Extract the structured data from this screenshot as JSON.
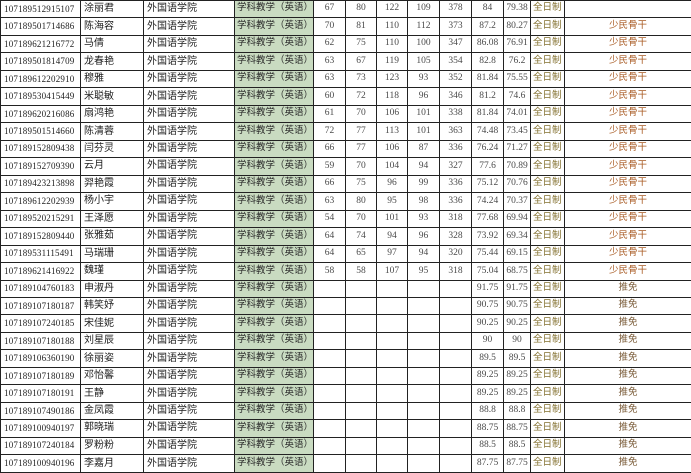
{
  "labels": {
    "college": "外国语学院",
    "major": "学科教学（英语）",
    "study_mode_fulltime": "全日制",
    "remark_shaomin": "少民骨干",
    "remark_tuimian": "推免"
  },
  "colors": {
    "major_cell_bg": "#c9dbc1",
    "table_border": "#222222",
    "fulltime_text": "#83702f",
    "remark_shaomin_text": "#a85a22",
    "remark_tuimian_text": "#7a5b38",
    "score_text": "#4a4a4a",
    "base_text": "#1d1d1d"
  },
  "table": {
    "col_names": [
      "candidate-id-cell",
      "candidate-name-cell",
      "college-cell",
      "major-cell",
      "score-politics-cell",
      "score-foreign-language-cell",
      "score-subject1-cell",
      "score-subject2-cell",
      "initial-total-score-cell",
      "retest-score-cell",
      "final-score-cell",
      "study-mode-cell",
      "remark-cell"
    ],
    "rows": [
      [
        "107189512915107",
        "涂丽君",
        "外国语学院",
        "学科教学（英语）",
        "67",
        "80",
        "122",
        "109",
        "378",
        "84",
        "79.38",
        "全日制",
        ""
      ],
      [
        "107189501714686",
        "陈海容",
        "外国语学院",
        "学科教学（英语）",
        "70",
        "81",
        "110",
        "112",
        "373",
        "87.2",
        "80.27",
        "全日制",
        "少民骨干"
      ],
      [
        "107189621216772",
        "马倩",
        "外国语学院",
        "学科教学（英语）",
        "62",
        "75",
        "110",
        "100",
        "347",
        "86.08",
        "76.91",
        "全日制",
        "少民骨干"
      ],
      [
        "107189501814709",
        "龙春艳",
        "外国语学院",
        "学科教学（英语）",
        "63",
        "67",
        "119",
        "105",
        "354",
        "82.8",
        "76.2",
        "全日制",
        "少民骨干"
      ],
      [
        "107189612202910",
        "穆雅",
        "外国语学院",
        "学科教学（英语）",
        "63",
        "73",
        "123",
        "93",
        "352",
        "81.84",
        "75.55",
        "全日制",
        "少民骨干"
      ],
      [
        "107189530415449",
        "米聪敏",
        "外国语学院",
        "学科教学（英语）",
        "60",
        "72",
        "118",
        "96",
        "346",
        "81.2",
        "74.6",
        "全日制",
        "少民骨干"
      ],
      [
        "107189620216086",
        "扇鸿艳",
        "外国语学院",
        "学科教学（英语）",
        "61",
        "70",
        "106",
        "101",
        "338",
        "81.84",
        "74.01",
        "全日制",
        "少民骨干"
      ],
      [
        "107189501514660",
        "陈清蓉",
        "外国语学院",
        "学科教学（英语）",
        "72",
        "77",
        "113",
        "101",
        "363",
        "74.48",
        "73.45",
        "全日制",
        "少民骨干"
      ],
      [
        "107189152809438",
        "闫芬灵",
        "外国语学院",
        "学科教学（英语）",
        "66",
        "77",
        "106",
        "87",
        "336",
        "76.24",
        "71.27",
        "全日制",
        "少民骨干"
      ],
      [
        "107189152709390",
        "云月",
        "外国语学院",
        "学科教学（英语）",
        "59",
        "70",
        "104",
        "94",
        "327",
        "77.6",
        "70.89",
        "全日制",
        "少民骨干"
      ],
      [
        "107189423213898",
        "羿艳霞",
        "外国语学院",
        "学科教学（英语）",
        "66",
        "75",
        "96",
        "99",
        "336",
        "75.12",
        "70.76",
        "全日制",
        "少民骨干"
      ],
      [
        "107189612202939",
        "杨小宇",
        "外国语学院",
        "学科教学（英语）",
        "63",
        "80",
        "95",
        "98",
        "336",
        "74.24",
        "70.37",
        "全日制",
        "少民骨干"
      ],
      [
        "107189520215291",
        "王泽愿",
        "外国语学院",
        "学科教学（英语）",
        "54",
        "70",
        "101",
        "93",
        "318",
        "77.68",
        "69.94",
        "全日制",
        "少民骨干"
      ],
      [
        "107189152809440",
        "张雅茹",
        "外国语学院",
        "学科教学（英语）",
        "64",
        "74",
        "94",
        "96",
        "328",
        "73.92",
        "69.34",
        "全日制",
        "少民骨干"
      ],
      [
        "107189531115491",
        "马瑞珊",
        "外国语学院",
        "学科教学（英语）",
        "64",
        "65",
        "97",
        "94",
        "320",
        "75.44",
        "69.15",
        "全日制",
        "少民骨干"
      ],
      [
        "107189621416922",
        "魏瑾",
        "外国语学院",
        "学科教学（英语）",
        "58",
        "58",
        "107",
        "95",
        "318",
        "75.04",
        "68.75",
        "全日制",
        "少民骨干"
      ],
      [
        "107189104760183",
        "申淑丹",
        "外国语学院",
        "学科教学（英语）",
        "",
        "",
        "",
        "",
        "",
        "91.75",
        "91.75",
        "全日制",
        "推免"
      ],
      [
        "107189107180187",
        "韩笑妤",
        "外国语学院",
        "学科教学（英语）",
        "",
        "",
        "",
        "",
        "",
        "90.75",
        "90.75",
        "全日制",
        "推免"
      ],
      [
        "107189107240185",
        "宋佳妮",
        "外国语学院",
        "学科教学（英语）",
        "",
        "",
        "",
        "",
        "",
        "90.25",
        "90.25",
        "全日制",
        "推免"
      ],
      [
        "107189107180188",
        "刘星辰",
        "外国语学院",
        "学科教学（英语）",
        "",
        "",
        "",
        "",
        "",
        "90",
        "90",
        "全日制",
        "推免"
      ],
      [
        "107189106360190",
        "徐丽姿",
        "外国语学院",
        "学科教学（英语）",
        "",
        "",
        "",
        "",
        "",
        "89.5",
        "89.5",
        "全日制",
        "推免"
      ],
      [
        "107189107180189",
        "邓怡馨",
        "外国语学院",
        "学科教学（英语）",
        "",
        "",
        "",
        "",
        "",
        "89.25",
        "89.25",
        "全日制",
        "推免"
      ],
      [
        "107189107180191",
        "王静",
        "外国语学院",
        "学科教学（英语）",
        "",
        "",
        "",
        "",
        "",
        "89.25",
        "89.25",
        "全日制",
        "推免"
      ],
      [
        "107189107490186",
        "金凤霞",
        "外国语学院",
        "学科教学（英语）",
        "",
        "",
        "",
        "",
        "",
        "88.8",
        "88.8",
        "全日制",
        "推免"
      ],
      [
        "107189100940197",
        "郭晓瑞",
        "外国语学院",
        "学科教学（英语）",
        "",
        "",
        "",
        "",
        "",
        "88.75",
        "88.75",
        "全日制",
        "推免"
      ],
      [
        "107189107240184",
        "罗粉粉",
        "外国语学院",
        "学科教学（英语）",
        "",
        "",
        "",
        "",
        "",
        "88.5",
        "88.5",
        "全日制",
        "推免"
      ],
      [
        "107189100940196",
        "李嘉月",
        "外国语学院",
        "学科教学（英语）",
        "",
        "",
        "",
        "",
        "",
        "87.75",
        "87.75",
        "全日制",
        "推免"
      ]
    ]
  }
}
